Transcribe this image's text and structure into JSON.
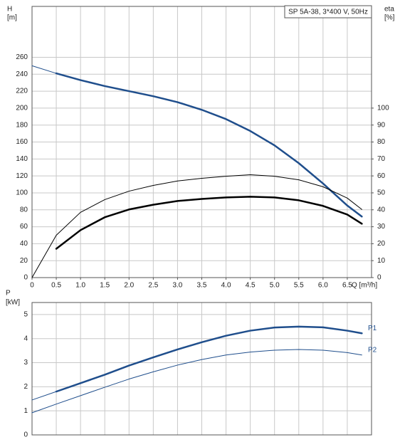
{
  "chart_data": [
    {
      "type": "line",
      "title": "SP 5A-38, 3*400 V, 50Hz",
      "ylabel": "H",
      "yunit": "[m]",
      "y2label": "eta",
      "y2unit": "[%]",
      "xlabel": "Q [m³/h]",
      "x": [
        0,
        0.5,
        1,
        1.5,
        2,
        2.5,
        3,
        3.5,
        4,
        4.5,
        5,
        5.5,
        6,
        6.5,
        6.8
      ],
      "xlim": [
        0,
        7
      ],
      "xticks": [
        0,
        0.5,
        {
          "value": 1,
          "label": "1.0"
        },
        1.5,
        {
          "value": 2,
          "label": "2.0"
        },
        2.5,
        {
          "value": 3,
          "label": "3.0"
        },
        3.5,
        {
          "value": 4,
          "label": "4.0"
        },
        4.5,
        {
          "value": 5,
          "label": "5.0"
        },
        5.5,
        {
          "value": 6,
          "label": "6.0"
        },
        6.5
      ],
      "ylim": [
        0,
        320
      ],
      "yticks": [
        0,
        20,
        40,
        60,
        80,
        100,
        120,
        140,
        160,
        180,
        200,
        220,
        240,
        260
      ],
      "y2lim": [
        0,
        160
      ],
      "y2ticks": [
        0,
        10,
        20,
        30,
        40,
        50,
        60,
        70,
        80,
        90,
        100
      ],
      "grid": true,
      "series": [
        {
          "color": "#1f4e8c",
          "width": 1,
          "values": [
            250,
            241,
            null,
            null,
            null,
            null,
            null,
            null,
            null,
            null,
            null,
            null,
            null,
            null,
            null
          ]
        },
        {
          "color": "#1f4e8c",
          "width": 2.5,
          "values": [
            null,
            241,
            233,
            226,
            220,
            214,
            207,
            198,
            187,
            173,
            156,
            135,
            111,
            85,
            72
          ]
        },
        {
          "color": "#000000",
          "width": 1,
          "axis": "y2",
          "values": [
            0,
            25,
            38.5,
            46,
            51,
            54.4,
            57,
            58.6,
            59.8,
            60.7,
            59.8,
            57.7,
            53.6,
            46.9,
            40.2
          ]
        },
        {
          "color": "#000000",
          "width": 2.5,
          "axis": "y2",
          "values": [
            null,
            17,
            28,
            35.6,
            40.2,
            43,
            45.2,
            46.4,
            47.3,
            47.7,
            47.3,
            45.6,
            42.3,
            37.2,
            31.8
          ]
        }
      ]
    },
    {
      "type": "line",
      "ylabel": "P",
      "yunit": "[kW]",
      "x": [
        0,
        0.5,
        1,
        1.5,
        2,
        2.5,
        3,
        3.5,
        4,
        4.5,
        5,
        5.5,
        6,
        6.5,
        6.8
      ],
      "xlim": [
        0,
        7
      ],
      "ylim": [
        0,
        5.5
      ],
      "yticks": [
        0,
        1,
        2,
        3,
        4,
        5
      ],
      "grid": true,
      "series": [
        {
          "color": "#1f4e8c",
          "width": 1,
          "values": [
            1.45,
            1.8,
            null,
            null,
            null,
            null,
            null,
            null,
            null,
            null,
            null,
            null,
            null,
            null,
            null
          ]
        },
        {
          "name": "P1",
          "color": "#1f4e8c",
          "width": 2.5,
          "values": [
            null,
            1.8,
            2.15,
            2.5,
            2.88,
            3.22,
            3.55,
            3.85,
            4.12,
            4.33,
            4.46,
            4.5,
            4.47,
            4.33,
            4.22
          ]
        },
        {
          "name": "P2",
          "color": "#1f4e8c",
          "width": 1,
          "values": [
            0.92,
            1.28,
            1.63,
            1.98,
            2.32,
            2.62,
            2.9,
            3.13,
            3.32,
            3.44,
            3.52,
            3.55,
            3.52,
            3.42,
            3.32
          ]
        }
      ]
    }
  ]
}
